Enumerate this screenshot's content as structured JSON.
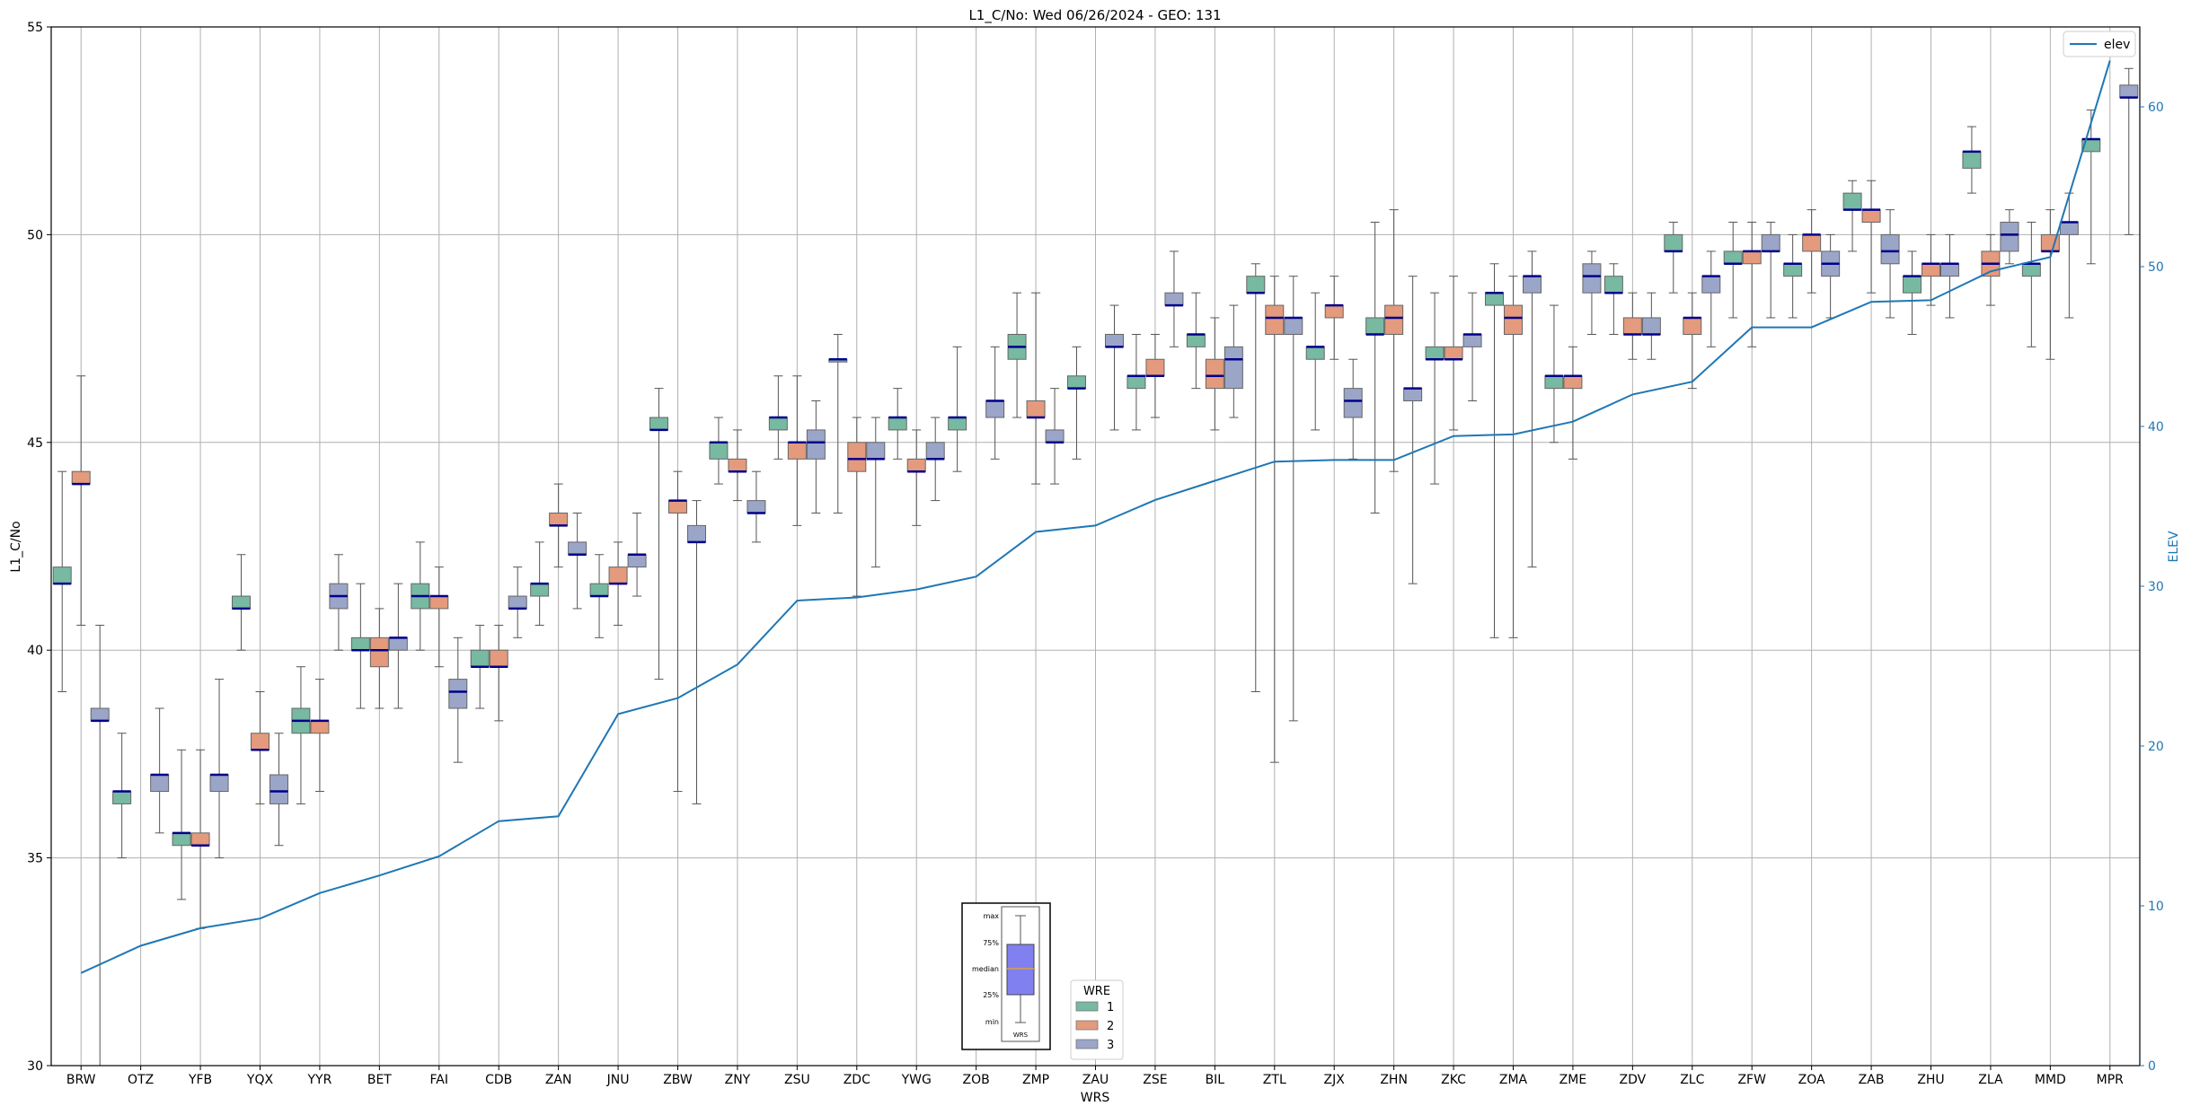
{
  "chart_data": {
    "type": "box",
    "title": "L1_C/No: Wed 06/26/2024 - GEO: 131",
    "xlabel": "WRS",
    "ylabel": "L1_C/No",
    "y2label": "ELEV",
    "ylim": [
      30,
      55
    ],
    "y2lim": [
      0,
      65
    ],
    "yticks": [
      30,
      35,
      40,
      45,
      50,
      55
    ],
    "y2ticks": [
      0,
      10,
      20,
      30,
      40,
      50,
      60
    ],
    "grid": true,
    "legend_position": "top-right",
    "colors": {
      "1": "#77b9a1",
      "2": "#e49a7c",
      "3": "#9aa5c8",
      "median": "#00008b",
      "elev": "#1f77b4",
      "whisker": "#555555"
    },
    "categories": [
      "BRW",
      "OTZ",
      "YFB",
      "YQX",
      "YYR",
      "BET",
      "FAI",
      "CDB",
      "ZAN",
      "JNU",
      "ZBW",
      "ZNY",
      "ZSU",
      "ZDC",
      "YWG",
      "ZOB",
      "ZMP",
      "ZAU",
      "ZSE",
      "BIL",
      "ZTL",
      "ZJX",
      "ZHN",
      "ZKC",
      "ZMA",
      "ZME",
      "ZDV",
      "ZLC",
      "ZFW",
      "ZOA",
      "ZAB",
      "ZHU",
      "ZLA",
      "MMD",
      "MPR"
    ],
    "wre_legend": {
      "title": "WRE",
      "entries": [
        "1",
        "2",
        "3"
      ]
    },
    "elev_legend": "elev",
    "boxes": [
      {
        "station": "BRW",
        "wre": "1",
        "min": 39.0,
        "q1": 41.6,
        "median": 41.6,
        "q3": 42.0,
        "max": 44.3
      },
      {
        "station": "BRW",
        "wre": "2",
        "min": 40.6,
        "q1": 44.0,
        "median": 44.0,
        "q3": 44.3,
        "max": 46.6
      },
      {
        "station": "BRW",
        "wre": "3",
        "min": 30.0,
        "q1": 38.3,
        "median": 38.3,
        "q3": 38.6,
        "max": 40.6
      },
      {
        "station": "OTZ",
        "wre": "1",
        "min": 35.0,
        "q1": 36.3,
        "median": 36.6,
        "q3": 36.6,
        "max": 38.0
      },
      {
        "station": "OTZ",
        "wre": "3",
        "min": 35.6,
        "q1": 36.6,
        "median": 37.0,
        "q3": 37.0,
        "max": 38.6
      },
      {
        "station": "YFB",
        "wre": "1",
        "min": 34.0,
        "q1": 35.3,
        "median": 35.6,
        "q3": 35.6,
        "max": 37.6
      },
      {
        "station": "YFB",
        "wre": "2",
        "min": 33.3,
        "q1": 35.3,
        "median": 35.3,
        "q3": 35.6,
        "max": 37.6
      },
      {
        "station": "YFB",
        "wre": "3",
        "min": 35.0,
        "q1": 36.6,
        "median": 37.0,
        "q3": 37.0,
        "max": 39.3
      },
      {
        "station": "YQX",
        "wre": "1",
        "min": 40.0,
        "q1": 41.0,
        "median": 41.0,
        "q3": 41.3,
        "max": 42.3
      },
      {
        "station": "YQX",
        "wre": "2",
        "min": 36.3,
        "q1": 37.6,
        "median": 37.6,
        "q3": 38.0,
        "max": 39.0
      },
      {
        "station": "YQX",
        "wre": "3",
        "min": 35.3,
        "q1": 36.3,
        "median": 36.6,
        "q3": 37.0,
        "max": 38.0
      },
      {
        "station": "YYR",
        "wre": "1",
        "min": 36.3,
        "q1": 38.0,
        "median": 38.3,
        "q3": 38.6,
        "max": 39.6
      },
      {
        "station": "YYR",
        "wre": "2",
        "min": 36.6,
        "q1": 38.0,
        "median": 38.3,
        "q3": 38.3,
        "max": 39.3
      },
      {
        "station": "YYR",
        "wre": "3",
        "min": 40.0,
        "q1": 41.0,
        "median": 41.3,
        "q3": 41.6,
        "max": 42.3
      },
      {
        "station": "BET",
        "wre": "1",
        "min": 38.6,
        "q1": 40.0,
        "median": 40.0,
        "q3": 40.3,
        "max": 41.6
      },
      {
        "station": "BET",
        "wre": "2",
        "min": 38.6,
        "q1": 39.6,
        "median": 40.0,
        "q3": 40.3,
        "max": 41.0
      },
      {
        "station": "BET",
        "wre": "3",
        "min": 38.6,
        "q1": 40.0,
        "median": 40.3,
        "q3": 40.3,
        "max": 41.6
      },
      {
        "station": "FAI",
        "wre": "1",
        "min": 40.0,
        "q1": 41.0,
        "median": 41.3,
        "q3": 41.6,
        "max": 42.6
      },
      {
        "station": "FAI",
        "wre": "2",
        "min": 39.6,
        "q1": 41.0,
        "median": 41.3,
        "q3": 41.3,
        "max": 42.0
      },
      {
        "station": "FAI",
        "wre": "3",
        "min": 37.3,
        "q1": 38.6,
        "median": 39.0,
        "q3": 39.3,
        "max": 40.3
      },
      {
        "station": "CDB",
        "wre": "1",
        "min": 38.6,
        "q1": 39.6,
        "median": 39.6,
        "q3": 40.0,
        "max": 40.6
      },
      {
        "station": "CDB",
        "wre": "2",
        "min": 38.3,
        "q1": 39.6,
        "median": 39.6,
        "q3": 40.0,
        "max": 40.6
      },
      {
        "station": "CDB",
        "wre": "3",
        "min": 40.3,
        "q1": 41.0,
        "median": 41.0,
        "q3": 41.3,
        "max": 42.0
      },
      {
        "station": "ZAN",
        "wre": "1",
        "min": 40.6,
        "q1": 41.3,
        "median": 41.6,
        "q3": 41.6,
        "max": 42.6
      },
      {
        "station": "ZAN",
        "wre": "2",
        "min": 42.0,
        "q1": 43.0,
        "median": 43.0,
        "q3": 43.3,
        "max": 44.0
      },
      {
        "station": "ZAN",
        "wre": "3",
        "min": 41.0,
        "q1": 42.3,
        "median": 42.3,
        "q3": 42.6,
        "max": 43.3
      },
      {
        "station": "JNU",
        "wre": "1",
        "min": 40.3,
        "q1": 41.3,
        "median": 41.3,
        "q3": 41.6,
        "max": 42.3
      },
      {
        "station": "JNU",
        "wre": "2",
        "min": 40.6,
        "q1": 41.6,
        "median": 41.6,
        "q3": 42.0,
        "max": 42.6
      },
      {
        "station": "JNU",
        "wre": "3",
        "min": 41.3,
        "q1": 42.0,
        "median": 42.3,
        "q3": 42.3,
        "max": 43.3
      },
      {
        "station": "ZBW",
        "wre": "1",
        "min": 39.3,
        "q1": 45.3,
        "median": 45.3,
        "q3": 45.6,
        "max": 46.3
      },
      {
        "station": "ZBW",
        "wre": "2",
        "min": 36.6,
        "q1": 43.3,
        "median": 43.6,
        "q3": 43.6,
        "max": 44.3
      },
      {
        "station": "ZBW",
        "wre": "3",
        "min": 36.3,
        "q1": 42.6,
        "median": 42.6,
        "q3": 43.0,
        "max": 43.6
      },
      {
        "station": "ZNY",
        "wre": "1",
        "min": 44.0,
        "q1": 44.6,
        "median": 45.0,
        "q3": 45.0,
        "max": 45.6
      },
      {
        "station": "ZNY",
        "wre": "2",
        "min": 43.6,
        "q1": 44.3,
        "median": 44.3,
        "q3": 44.6,
        "max": 45.3
      },
      {
        "station": "ZNY",
        "wre": "3",
        "min": 42.6,
        "q1": 43.3,
        "median": 43.3,
        "q3": 43.6,
        "max": 44.3
      },
      {
        "station": "ZSU",
        "wre": "1",
        "min": 44.6,
        "q1": 45.3,
        "median": 45.6,
        "q3": 45.6,
        "max": 46.6
      },
      {
        "station": "ZSU",
        "wre": "2",
        "min": 43.0,
        "q1": 44.6,
        "median": 45.0,
        "q3": 45.0,
        "max": 46.6
      },
      {
        "station": "ZSU",
        "wre": "3",
        "min": 43.3,
        "q1": 44.6,
        "median": 45.0,
        "q3": 45.3,
        "max": 46.0
      },
      {
        "station": "ZDC",
        "wre": "1",
        "min": 43.3,
        "q1": 47.0,
        "median": 47.0,
        "q3": 47.0,
        "max": 47.6
      },
      {
        "station": "ZDC",
        "wre": "2",
        "min": 41.3,
        "q1": 44.3,
        "median": 44.6,
        "q3": 45.0,
        "max": 45.6
      },
      {
        "station": "ZDC",
        "wre": "3",
        "min": 42.0,
        "q1": 44.6,
        "median": 44.6,
        "q3": 45.0,
        "max": 45.6
      },
      {
        "station": "YWG",
        "wre": "1",
        "min": 44.6,
        "q1": 45.3,
        "median": 45.6,
        "q3": 45.6,
        "max": 46.3
      },
      {
        "station": "YWG",
        "wre": "2",
        "min": 43.0,
        "q1": 44.3,
        "median": 44.3,
        "q3": 44.6,
        "max": 45.3
      },
      {
        "station": "YWG",
        "wre": "3",
        "min": 43.6,
        "q1": 44.6,
        "median": 44.6,
        "q3": 45.0,
        "max": 45.6
      },
      {
        "station": "ZOB",
        "wre": "1",
        "min": 44.3,
        "q1": 45.3,
        "median": 45.6,
        "q3": 45.6,
        "max": 47.3
      },
      {
        "station": "ZOB",
        "wre": "3",
        "min": 44.6,
        "q1": 45.6,
        "median": 46.0,
        "q3": 46.0,
        "max": 47.3
      },
      {
        "station": "ZMP",
        "wre": "1",
        "min": 45.6,
        "q1": 47.0,
        "median": 47.3,
        "q3": 47.6,
        "max": 48.6
      },
      {
        "station": "ZMP",
        "wre": "2",
        "min": 44.0,
        "q1": 45.6,
        "median": 45.6,
        "q3": 46.0,
        "max": 48.6
      },
      {
        "station": "ZMP",
        "wre": "3",
        "min": 44.0,
        "q1": 45.0,
        "median": 45.0,
        "q3": 45.3,
        "max": 46.3
      },
      {
        "station": "ZAU",
        "wre": "1",
        "min": 44.6,
        "q1": 46.3,
        "median": 46.3,
        "q3": 46.6,
        "max": 47.3
      },
      {
        "station": "ZAU",
        "wre": "3",
        "min": 45.3,
        "q1": 47.3,
        "median": 47.3,
        "q3": 47.6,
        "max": 48.3
      },
      {
        "station": "ZSE",
        "wre": "1",
        "min": 45.3,
        "q1": 46.3,
        "median": 46.6,
        "q3": 46.6,
        "max": 47.6
      },
      {
        "station": "ZSE",
        "wre": "2",
        "min": 45.6,
        "q1": 46.6,
        "median": 46.6,
        "q3": 47.0,
        "max": 47.6
      },
      {
        "station": "ZSE",
        "wre": "3",
        "min": 47.3,
        "q1": 48.3,
        "median": 48.3,
        "q3": 48.6,
        "max": 49.6
      },
      {
        "station": "BIL",
        "wre": "1",
        "min": 46.3,
        "q1": 47.3,
        "median": 47.6,
        "q3": 47.6,
        "max": 48.6
      },
      {
        "station": "BIL",
        "wre": "2",
        "min": 45.3,
        "q1": 46.3,
        "median": 46.6,
        "q3": 47.0,
        "max": 48.0
      },
      {
        "station": "BIL",
        "wre": "3",
        "min": 45.6,
        "q1": 46.3,
        "median": 47.0,
        "q3": 47.3,
        "max": 48.3
      },
      {
        "station": "ZTL",
        "wre": "1",
        "min": 39.0,
        "q1": 48.6,
        "median": 48.6,
        "q3": 49.0,
        "max": 49.3
      },
      {
        "station": "ZTL",
        "wre": "2",
        "min": 37.3,
        "q1": 47.6,
        "median": 48.0,
        "q3": 48.3,
        "max": 49.0
      },
      {
        "station": "ZTL",
        "wre": "3",
        "min": 38.3,
        "q1": 47.6,
        "median": 48.0,
        "q3": 48.0,
        "max": 49.0
      },
      {
        "station": "ZJX",
        "wre": "1",
        "min": 45.3,
        "q1": 47.0,
        "median": 47.3,
        "q3": 47.3,
        "max": 48.6
      },
      {
        "station": "ZJX",
        "wre": "2",
        "min": 47.0,
        "q1": 48.0,
        "median": 48.3,
        "q3": 48.3,
        "max": 49.0
      },
      {
        "station": "ZJX",
        "wre": "3",
        "min": 44.6,
        "q1": 45.6,
        "median": 46.0,
        "q3": 46.3,
        "max": 47.0
      },
      {
        "station": "ZHN",
        "wre": "1",
        "min": 43.3,
        "q1": 47.6,
        "median": 47.6,
        "q3": 48.0,
        "max": 50.3
      },
      {
        "station": "ZHN",
        "wre": "2",
        "min": 44.3,
        "q1": 47.6,
        "median": 48.0,
        "q3": 48.3,
        "max": 50.6
      },
      {
        "station": "ZHN",
        "wre": "3",
        "min": 41.6,
        "q1": 46.0,
        "median": 46.3,
        "q3": 46.3,
        "max": 49.0
      },
      {
        "station": "ZKC",
        "wre": "1",
        "min": 44.0,
        "q1": 47.0,
        "median": 47.0,
        "q3": 47.3,
        "max": 48.6
      },
      {
        "station": "ZKC",
        "wre": "2",
        "min": 45.3,
        "q1": 47.0,
        "median": 47.0,
        "q3": 47.3,
        "max": 49.0
      },
      {
        "station": "ZKC",
        "wre": "3",
        "min": 46.0,
        "q1": 47.3,
        "median": 47.6,
        "q3": 47.6,
        "max": 48.6
      },
      {
        "station": "ZMA",
        "wre": "1",
        "min": 40.3,
        "q1": 48.3,
        "median": 48.6,
        "q3": 48.6,
        "max": 49.3
      },
      {
        "station": "ZMA",
        "wre": "2",
        "min": 40.3,
        "q1": 47.6,
        "median": 48.0,
        "q3": 48.3,
        "max": 49.0
      },
      {
        "station": "ZMA",
        "wre": "3",
        "min": 42.0,
        "q1": 48.6,
        "median": 49.0,
        "q3": 49.0,
        "max": 49.6
      },
      {
        "station": "ZME",
        "wre": "1",
        "min": 45.0,
        "q1": 46.3,
        "median": 46.6,
        "q3": 46.6,
        "max": 48.3
      },
      {
        "station": "ZME",
        "wre": "2",
        "min": 44.6,
        "q1": 46.3,
        "median": 46.6,
        "q3": 46.6,
        "max": 47.3
      },
      {
        "station": "ZME",
        "wre": "3",
        "min": 47.6,
        "q1": 48.6,
        "median": 49.0,
        "q3": 49.3,
        "max": 49.6
      },
      {
        "station": "ZDV",
        "wre": "1",
        "min": 47.6,
        "q1": 48.6,
        "median": 48.6,
        "q3": 49.0,
        "max": 49.3
      },
      {
        "station": "ZDV",
        "wre": "2",
        "min": 47.0,
        "q1": 47.6,
        "median": 47.6,
        "q3": 48.0,
        "max": 48.6
      },
      {
        "station": "ZDV",
        "wre": "3",
        "min": 47.0,
        "q1": 47.6,
        "median": 47.6,
        "q3": 48.0,
        "max": 48.6
      },
      {
        "station": "ZLC",
        "wre": "1",
        "min": 48.6,
        "q1": 49.6,
        "median": 49.6,
        "q3": 50.0,
        "max": 50.3
      },
      {
        "station": "ZLC",
        "wre": "2",
        "min": 46.3,
        "q1": 47.6,
        "median": 48.0,
        "q3": 48.0,
        "max": 48.6
      },
      {
        "station": "ZLC",
        "wre": "3",
        "min": 47.3,
        "q1": 48.6,
        "median": 49.0,
        "q3": 49.0,
        "max": 49.6
      },
      {
        "station": "ZFW",
        "wre": "1",
        "min": 48.0,
        "q1": 49.3,
        "median": 49.3,
        "q3": 49.6,
        "max": 50.3
      },
      {
        "station": "ZFW",
        "wre": "2",
        "min": 47.3,
        "q1": 49.3,
        "median": 49.6,
        "q3": 49.6,
        "max": 50.3
      },
      {
        "station": "ZFW",
        "wre": "3",
        "min": 48.0,
        "q1": 49.6,
        "median": 49.6,
        "q3": 50.0,
        "max": 50.3
      },
      {
        "station": "ZOA",
        "wre": "1",
        "min": 48.0,
        "q1": 49.0,
        "median": 49.3,
        "q3": 49.3,
        "max": 50.0
      },
      {
        "station": "ZOA",
        "wre": "2",
        "min": 48.6,
        "q1": 49.6,
        "median": 50.0,
        "q3": 50.0,
        "max": 50.6
      },
      {
        "station": "ZOA",
        "wre": "3",
        "min": 48.0,
        "q1": 49.0,
        "median": 49.3,
        "q3": 49.6,
        "max": 50.0
      },
      {
        "station": "ZAB",
        "wre": "1",
        "min": 49.6,
        "q1": 50.6,
        "median": 50.6,
        "q3": 51.0,
        "max": 51.3
      },
      {
        "station": "ZAB",
        "wre": "2",
        "min": 48.6,
        "q1": 50.3,
        "median": 50.6,
        "q3": 50.6,
        "max": 51.3
      },
      {
        "station": "ZAB",
        "wre": "3",
        "min": 48.0,
        "q1": 49.3,
        "median": 49.6,
        "q3": 50.0,
        "max": 50.6
      },
      {
        "station": "ZHU",
        "wre": "1",
        "min": 47.6,
        "q1": 48.6,
        "median": 49.0,
        "q3": 49.0,
        "max": 49.6
      },
      {
        "station": "ZHU",
        "wre": "2",
        "min": 48.3,
        "q1": 49.0,
        "median": 49.3,
        "q3": 49.3,
        "max": 50.0
      },
      {
        "station": "ZHU",
        "wre": "3",
        "min": 48.0,
        "q1": 49.0,
        "median": 49.3,
        "q3": 49.3,
        "max": 50.0
      },
      {
        "station": "ZLA",
        "wre": "1",
        "min": 51.0,
        "q1": 51.6,
        "median": 52.0,
        "q3": 52.0,
        "max": 52.6
      },
      {
        "station": "ZLA",
        "wre": "2",
        "min": 48.3,
        "q1": 49.0,
        "median": 49.3,
        "q3": 49.6,
        "max": 50.0
      },
      {
        "station": "ZLA",
        "wre": "3",
        "min": 49.3,
        "q1": 49.6,
        "median": 50.0,
        "q3": 50.3,
        "max": 50.6
      },
      {
        "station": "MMD",
        "wre": "1",
        "min": 47.3,
        "q1": 49.0,
        "median": 49.3,
        "q3": 49.3,
        "max": 50.3
      },
      {
        "station": "MMD",
        "wre": "2",
        "min": 47.0,
        "q1": 49.6,
        "median": 49.6,
        "q3": 50.0,
        "max": 50.6
      },
      {
        "station": "MMD",
        "wre": "3",
        "min": 48.0,
        "q1": 50.0,
        "median": 50.3,
        "q3": 50.3,
        "max": 51.0
      },
      {
        "station": "MPR",
        "wre": "1",
        "min": 49.3,
        "q1": 52.0,
        "median": 52.3,
        "q3": 52.3,
        "max": 53.0
      },
      {
        "station": "MPR",
        "wre": "3",
        "min": 50.0,
        "q1": 53.3,
        "median": 53.3,
        "q3": 53.6,
        "max": 54.0
      }
    ],
    "elev": {
      "name": "elev",
      "x": [
        "BRW",
        "OTZ",
        "YFB",
        "YQX",
        "YYR",
        "BET",
        "FAI",
        "CDB",
        "ZAN",
        "JNU",
        "ZBW",
        "ZNY",
        "ZSU",
        "ZDC",
        "YWG",
        "ZOB",
        "ZMP",
        "ZAU",
        "ZSE",
        "BIL",
        "ZTL",
        "ZJX",
        "ZHN",
        "ZKC",
        "ZMA",
        "ZME",
        "ZDV",
        "ZLC",
        "ZFW",
        "ZOA",
        "ZAB",
        "ZHU",
        "ZLA",
        "MMD",
        "MPR"
      ],
      "values": [
        5.8,
        7.5,
        8.6,
        9.2,
        10.8,
        11.9,
        13.1,
        15.3,
        15.6,
        22.0,
        23.0,
        25.1,
        29.1,
        29.3,
        29.8,
        30.6,
        33.4,
        33.8,
        35.4,
        36.6,
        37.8,
        37.9,
        37.9,
        39.4,
        39.5,
        40.3,
        42.0,
        42.8,
        46.2,
        46.2,
        47.8,
        47.9,
        49.7,
        50.6,
        62.9
      ]
    },
    "key_box": {
      "labels": [
        "max",
        "75%",
        "median",
        "25%",
        "min"
      ],
      "xlabel": "WRS"
    }
  }
}
